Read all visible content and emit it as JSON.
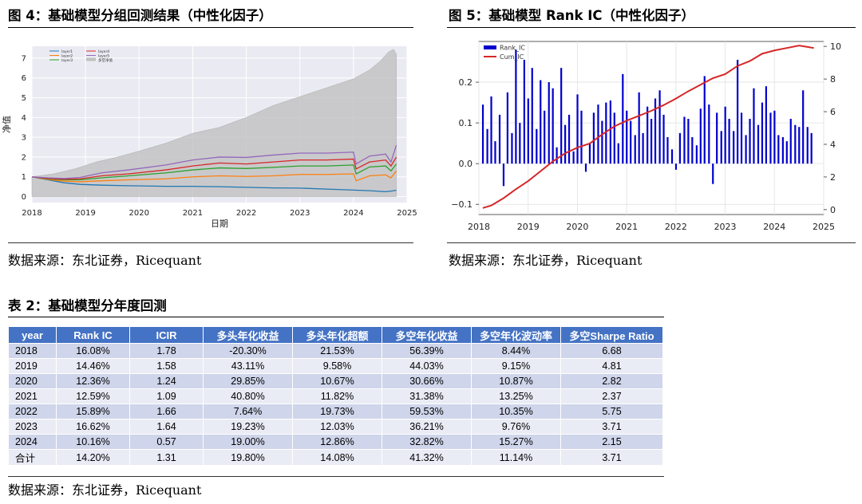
{
  "fig4": {
    "title": "图 4：基础模型分组回测结果（中性化因子）",
    "source": "数据来源：东北证券，Ricequant",
    "chart_data": {
      "type": "area",
      "xlabel": "日期",
      "ylabel": "净值",
      "x_ticks": [
        "2018",
        "2019",
        "2020",
        "2021",
        "2022",
        "2023",
        "2024",
        "2025"
      ],
      "y_ticks": [
        0,
        1,
        2,
        3,
        4,
        5,
        6,
        7
      ],
      "ylim": [
        -0.3,
        7.6
      ],
      "xlim": [
        2018.0,
        2025.0
      ],
      "grid": true,
      "legend_position": "top-left",
      "series": [
        {
          "name": "layer1",
          "color": "#1f77b4",
          "x": [
            2018.0,
            2018.3,
            2018.6,
            2018.9,
            2019.3,
            2019.8,
            2020.5,
            2021.0,
            2021.5,
            2022.0,
            2022.5,
            2023.0,
            2023.5,
            2024.0,
            2024.3,
            2024.6,
            2024.7,
            2024.8
          ],
          "y": [
            1.0,
            0.85,
            0.7,
            0.62,
            0.58,
            0.55,
            0.52,
            0.52,
            0.5,
            0.47,
            0.44,
            0.43,
            0.38,
            0.33,
            0.3,
            0.25,
            0.28,
            0.32
          ]
        },
        {
          "name": "layer2",
          "color": "#ff7f0e",
          "x": [
            2018.0,
            2018.3,
            2018.6,
            2018.9,
            2019.3,
            2019.8,
            2020.5,
            2021.0,
            2021.5,
            2022.0,
            2022.5,
            2023.0,
            2023.5,
            2024.0,
            2024.05,
            2024.3,
            2024.6,
            2024.7,
            2024.8
          ],
          "y": [
            1.0,
            0.87,
            0.78,
            0.75,
            0.8,
            0.85,
            0.9,
            1.0,
            1.05,
            1.02,
            1.05,
            1.12,
            1.12,
            1.15,
            0.8,
            1.05,
            1.1,
            0.95,
            1.3
          ]
        },
        {
          "name": "layer3",
          "color": "#2ca02c",
          "x": [
            2018.0,
            2018.3,
            2018.6,
            2018.9,
            2019.3,
            2019.8,
            2020.5,
            2021.0,
            2021.5,
            2022.0,
            2022.5,
            2023.0,
            2023.5,
            2024.0,
            2024.05,
            2024.3,
            2024.6,
            2024.7,
            2024.8
          ],
          "y": [
            1.0,
            0.9,
            0.85,
            0.85,
            0.95,
            1.05,
            1.2,
            1.35,
            1.45,
            1.42,
            1.48,
            1.55,
            1.55,
            1.6,
            1.15,
            1.5,
            1.55,
            1.3,
            1.65
          ]
        },
        {
          "name": "layer4",
          "color": "#d62728",
          "x": [
            2018.0,
            2018.3,
            2018.6,
            2018.9,
            2019.3,
            2019.8,
            2020.5,
            2021.0,
            2021.5,
            2022.0,
            2022.5,
            2023.0,
            2023.5,
            2024.0,
            2024.05,
            2024.3,
            2024.6,
            2024.7,
            2024.8
          ],
          "y": [
            1.0,
            0.92,
            0.88,
            0.9,
            1.05,
            1.15,
            1.35,
            1.55,
            1.7,
            1.65,
            1.75,
            1.85,
            1.85,
            1.9,
            1.4,
            1.75,
            1.85,
            1.55,
            2.0
          ]
        },
        {
          "name": "layer5",
          "color": "#9467bd",
          "x": [
            2018.0,
            2018.3,
            2018.6,
            2018.9,
            2019.3,
            2019.8,
            2020.5,
            2021.0,
            2021.5,
            2022.0,
            2022.5,
            2023.0,
            2023.5,
            2024.0,
            2024.05,
            2024.3,
            2024.6,
            2024.7,
            2024.8
          ],
          "y": [
            1.0,
            0.95,
            0.92,
            0.97,
            1.2,
            1.35,
            1.6,
            1.85,
            2.0,
            1.98,
            2.1,
            2.2,
            2.2,
            2.25,
            1.65,
            2.05,
            2.15,
            1.75,
            2.6
          ]
        },
        {
          "name": "多空净值",
          "color": "#c0c0c0",
          "x": [
            2018.0,
            2018.4,
            2018.8,
            2019.2,
            2019.6,
            2020.0,
            2020.5,
            2021.0,
            2021.5,
            2022.0,
            2022.5,
            2023.0,
            2023.5,
            2024.0,
            2024.3,
            2024.5,
            2024.65,
            2024.75,
            2024.8
          ],
          "y": [
            1.0,
            1.15,
            1.4,
            1.75,
            2.0,
            2.3,
            2.7,
            3.2,
            3.5,
            4.0,
            4.6,
            5.05,
            5.5,
            5.95,
            6.4,
            6.85,
            7.3,
            7.45,
            7.2
          ]
        }
      ]
    }
  },
  "fig5": {
    "title": "图 5：基础模型 Rank IC（中性化因子）",
    "source": "数据来源：东北证券，Ricequant",
    "chart_data": {
      "type": "bar",
      "x_ticks": [
        "2018",
        "2019",
        "2020",
        "2021",
        "2022",
        "2023",
        "2024",
        "2025"
      ],
      "y_left_ticks": [
        "−0.1",
        "0.0",
        "0.1",
        "0.2"
      ],
      "y_left_values": [
        -0.1,
        0.0,
        0.1,
        0.2
      ],
      "y_right_ticks": [
        "0",
        "2",
        "4",
        "6",
        "8",
        "10"
      ],
      "y_right_values": [
        0,
        2,
        4,
        6,
        8,
        10
      ],
      "ylim_left": [
        -0.125,
        0.3
      ],
      "ylim_right": [
        -0.3,
        10.3
      ],
      "xlim": [
        2018.0,
        2025.0
      ],
      "grid": true,
      "legend_position": "top-left",
      "series": [
        {
          "name": "Rank_IC",
          "color": "#0000cd",
          "type": "bar",
          "x": [
            2018.08,
            2018.17,
            2018.25,
            2018.33,
            2018.42,
            2018.5,
            2018.58,
            2018.67,
            2018.75,
            2018.83,
            2018.92,
            2019.0,
            2019.08,
            2019.17,
            2019.25,
            2019.33,
            2019.42,
            2019.5,
            2019.58,
            2019.67,
            2019.75,
            2019.83,
            2019.92,
            2020.0,
            2020.08,
            2020.17,
            2020.25,
            2020.33,
            2020.42,
            2020.5,
            2020.58,
            2020.67,
            2020.75,
            2020.83,
            2020.92,
            2021.0,
            2021.08,
            2021.17,
            2021.25,
            2021.33,
            2021.42,
            2021.5,
            2021.58,
            2021.67,
            2021.75,
            2021.83,
            2021.92,
            2022.0,
            2022.08,
            2022.17,
            2022.25,
            2022.33,
            2022.42,
            2022.5,
            2022.58,
            2022.67,
            2022.75,
            2022.83,
            2022.92,
            2023.0,
            2023.08,
            2023.17,
            2023.25,
            2023.33,
            2023.42,
            2023.5,
            2023.58,
            2023.67,
            2023.75,
            2023.83,
            2023.92,
            2024.0,
            2024.08,
            2024.17,
            2024.25,
            2024.33,
            2024.42,
            2024.5,
            2024.58,
            2024.67,
            2024.75
          ],
          "y": [
            0.145,
            0.085,
            0.165,
            0.055,
            0.12,
            -0.055,
            0.175,
            0.075,
            0.28,
            0.1,
            0.255,
            0.16,
            0.235,
            0.085,
            0.205,
            0.13,
            0.2,
            0.185,
            0.04,
            0.235,
            0.095,
            0.12,
            0.03,
            0.17,
            0.13,
            -0.02,
            0.05,
            0.125,
            0.145,
            0.105,
            0.15,
            0.155,
            0.125,
            0.05,
            0.22,
            0.13,
            0.105,
            0.07,
            0.175,
            0.075,
            0.14,
            0.11,
            0.16,
            0.18,
            0.12,
            0.065,
            0.035,
            -0.015,
            0.075,
            0.115,
            0.11,
            0.065,
            0.045,
            0.135,
            0.215,
            0.145,
            -0.05,
            0.125,
            0.08,
            0.14,
            0.11,
            0.08,
            0.255,
            0.125,
            0.07,
            0.11,
            0.185,
            0.095,
            0.15,
            0.19,
            0.125,
            0.13,
            0.07,
            0.065,
            0.055,
            0.11,
            0.095,
            0.09,
            0.18,
            0.09,
            0.075
          ]
        },
        {
          "name": "Cum_IC",
          "color": "#d62728",
          "type": "line",
          "x": [
            2018.08,
            2018.25,
            2018.5,
            2018.75,
            2019.0,
            2019.25,
            2019.5,
            2019.75,
            2020.0,
            2020.25,
            2020.5,
            2020.75,
            2021.0,
            2021.25,
            2021.5,
            2021.75,
            2022.0,
            2022.25,
            2022.5,
            2022.75,
            2023.0,
            2023.25,
            2023.5,
            2023.75,
            2024.0,
            2024.25,
            2024.5,
            2024.7,
            2024.8
          ],
          "y": [
            0.1,
            0.25,
            0.7,
            1.25,
            1.75,
            2.35,
            2.95,
            3.45,
            3.8,
            4.05,
            4.6,
            5.1,
            5.45,
            5.75,
            6.05,
            6.4,
            6.8,
            7.25,
            7.65,
            8.05,
            8.3,
            8.8,
            9.1,
            9.55,
            9.75,
            9.9,
            10.05,
            9.95,
            9.9
          ]
        }
      ]
    }
  },
  "table2": {
    "title": "表 2：基础模型分年度回测",
    "source": "数据来源：东北证券，Ricequant",
    "headers": [
      "year",
      "Rank IC",
      "ICIR",
      "多头年化收益",
      "多头年化超额",
      "多空年化收益",
      "多空年化波动率",
      "多空Sharpe Ratio"
    ],
    "rows": [
      [
        "2018",
        "16.08%",
        "1.78",
        "-20.30%",
        "21.53%",
        "56.39%",
        "8.44%",
        "6.68"
      ],
      [
        "2019",
        "14.46%",
        "1.58",
        "43.11%",
        "9.58%",
        "44.03%",
        "9.15%",
        "4.81"
      ],
      [
        "2020",
        "12.36%",
        "1.24",
        "29.85%",
        "10.67%",
        "30.66%",
        "10.87%",
        "2.82"
      ],
      [
        "2021",
        "12.59%",
        "1.09",
        "40.80%",
        "11.82%",
        "31.38%",
        "13.25%",
        "2.37"
      ],
      [
        "2022",
        "15.89%",
        "1.66",
        "7.64%",
        "19.73%",
        "59.53%",
        "10.35%",
        "5.75"
      ],
      [
        "2023",
        "16.62%",
        "1.64",
        "19.23%",
        "12.03%",
        "36.21%",
        "9.76%",
        "3.71"
      ],
      [
        "2024",
        "10.16%",
        "0.57",
        "19.00%",
        "12.86%",
        "32.82%",
        "15.27%",
        "2.15"
      ],
      [
        "合计",
        "14.20%",
        "1.31",
        "19.80%",
        "14.08%",
        "41.32%",
        "11.14%",
        "3.71"
      ]
    ]
  }
}
